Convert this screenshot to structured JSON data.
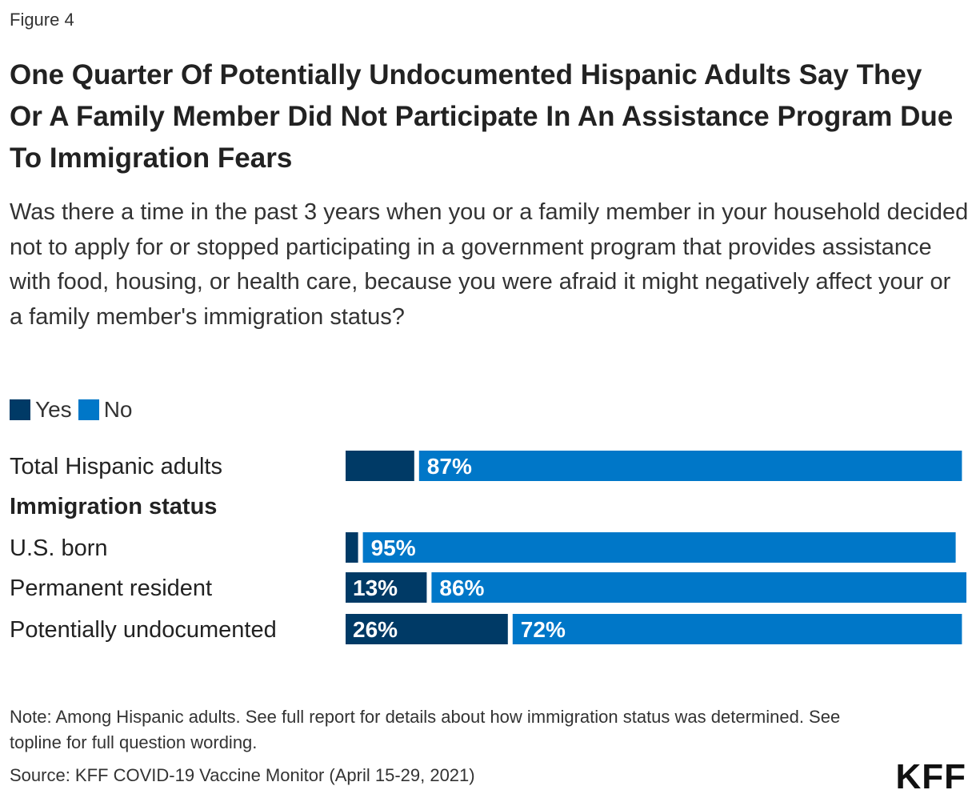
{
  "figure_label": "Figure 4",
  "note": "Note: Among Hispanic adults. See full report for details about how immigration status was determined. See topline for full question wording.",
  "source": "Source: KFF COVID-19 Vaccine Monitor (April 15-29, 2021)",
  "logo": "KFF",
  "colors": {
    "yes": "#003a66",
    "no": "#0077c8",
    "text": "#222222"
  },
  "chart_data": {
    "type": "bar",
    "orientation": "horizontal",
    "stacked": true,
    "title": "One Quarter Of Potentially Undocumented Hispanic Adults Say They Or A Family Member Did Not Participate In An Assistance Program Due To Immigration Fears",
    "subtitle": "Was there a time in the past 3 years when you or a family member in your household decided not to apply for or stopped participating in a government program that provides assistance with food, housing, or health care, because you were afraid it might negatively affect your or a family member's immigration status?",
    "legend": [
      "Yes",
      "No"
    ],
    "xlim": [
      0,
      100
    ],
    "rows": [
      {
        "label": "Total Hispanic adults",
        "kind": "bar",
        "yes": 11,
        "no": 87,
        "yes_label": "",
        "no_label": "87%"
      },
      {
        "label": "Immigration status",
        "kind": "header"
      },
      {
        "label": "U.S. born",
        "kind": "bar",
        "yes": 2,
        "no": 95,
        "yes_label": "",
        "no_label": "95%"
      },
      {
        "label": "Permanent resident",
        "kind": "bar",
        "yes": 13,
        "no": 86,
        "yes_label": "13%",
        "no_label": "86%"
      },
      {
        "label": "Potentially undocumented",
        "kind": "bar",
        "yes": 26,
        "no": 72,
        "yes_label": "26%",
        "no_label": "72%"
      }
    ]
  }
}
